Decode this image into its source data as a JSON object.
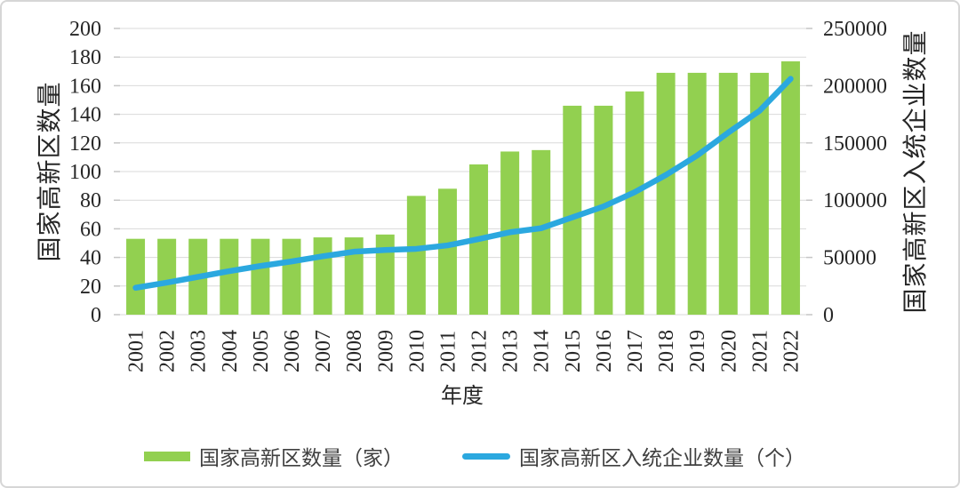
{
  "chart_data": {
    "type": "combo",
    "title": "",
    "categories": [
      "2001",
      "2002",
      "2003",
      "2004",
      "2005",
      "2006",
      "2007",
      "2008",
      "2009",
      "2010",
      "2011",
      "2012",
      "2013",
      "2014",
      "2015",
      "2016",
      "2017",
      "2018",
      "2019",
      "2020",
      "2021",
      "2022"
    ],
    "series": [
      {
        "name": "国家高新区数量（家）",
        "type": "bar",
        "axis": "left",
        "color": "#92D050",
        "values": [
          53,
          53,
          53,
          53,
          53,
          53,
          54,
          54,
          56,
          83,
          88,
          105,
          114,
          115,
          146,
          146,
          156,
          169,
          169,
          169,
          169,
          177
        ]
      },
      {
        "name": "国家高新区入统企业数量（个）",
        "type": "line",
        "axis": "right",
        "color": "#2BA8DF",
        "values": [
          23500,
          28000,
          33000,
          38000,
          42500,
          46500,
          51000,
          55000,
          56500,
          57500,
          60500,
          66000,
          72000,
          75500,
          85000,
          94500,
          107000,
          122000,
          139000,
          159000,
          178000,
          206000
        ]
      }
    ],
    "left_axis": {
      "title": "国家高新区数量",
      "min": 0,
      "max": 200,
      "step": 20,
      "tick_labels": [
        "0",
        "20",
        "40",
        "60",
        "80",
        "100",
        "120",
        "140",
        "160",
        "180",
        "200"
      ]
    },
    "right_axis": {
      "title": "国家高新区入统企业数量",
      "min": 0,
      "max": 250000,
      "step": 50000,
      "tick_labels": [
        "0",
        "50000",
        "100000",
        "150000",
        "200000",
        "250000"
      ]
    },
    "x_axis": {
      "title": "年度"
    },
    "legend_position": "bottom",
    "grid": true,
    "grid_color": "#D9D9D9",
    "tick_color": "#C6C6C6",
    "text_color": "#262626"
  }
}
